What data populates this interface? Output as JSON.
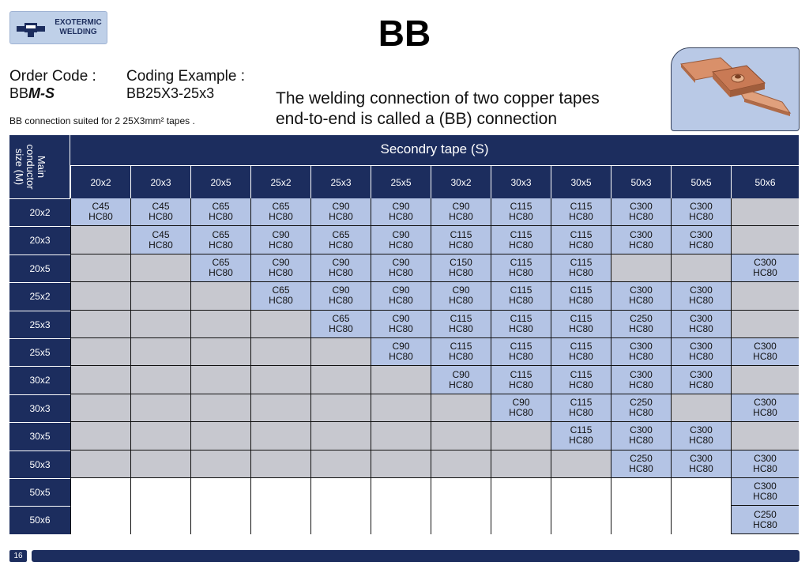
{
  "logo": {
    "text": "EXOTERMIC WELDING"
  },
  "title": "BB",
  "order": {
    "label": "Order Code :",
    "code_prefix": "BB",
    "code_suffix": "M-S"
  },
  "coding": {
    "label": "Coding Example :",
    "example": "BB25X3-25x3"
  },
  "suited_text": "BB connection suited for 2 25X3mm² tapes .",
  "description": {
    "line1": "The welding connection of two copper tapes",
    "line2": "end-to-end is called a (BB) connection"
  },
  "table": {
    "main_header": "Main conductor size (M)",
    "secondary_header": "Secondry tape (S)",
    "columns": [
      "20x2",
      "20x3",
      "20x5",
      "25x2",
      "25x3",
      "25x5",
      "30x2",
      "30x3",
      "30x5",
      "50x3",
      "50x5",
      "50x6"
    ],
    "rows": [
      {
        "label": "20x2",
        "cells": [
          [
            "C45",
            "HC80"
          ],
          [
            "C45",
            "HC80"
          ],
          [
            "C65",
            "HC80"
          ],
          [
            "C65",
            "HC80"
          ],
          [
            "C90",
            "HC80"
          ],
          [
            "C90",
            "HC80"
          ],
          [
            "C90",
            "HC80"
          ],
          [
            "C115",
            "HC80"
          ],
          [
            "C115",
            "HC80"
          ],
          [
            "C300",
            "HC80"
          ],
          [
            "C300",
            "HC80"
          ],
          "gray"
        ]
      },
      {
        "label": "20x3",
        "cells": [
          "gray",
          [
            "C45",
            "HC80"
          ],
          [
            "C65",
            "HC80"
          ],
          [
            "C90",
            "HC80"
          ],
          [
            "C65",
            "HC80"
          ],
          [
            "C90",
            "HC80"
          ],
          [
            "C115",
            "HC80"
          ],
          [
            "C115",
            "HC80"
          ],
          [
            "C115",
            "HC80"
          ],
          [
            "C300",
            "HC80"
          ],
          [
            "C300",
            "HC80"
          ],
          "gray"
        ]
      },
      {
        "label": "20x5",
        "cells": [
          "gray",
          "gray",
          [
            "C65",
            "HC80"
          ],
          [
            "C90",
            "HC80"
          ],
          [
            "C90",
            "HC80"
          ],
          [
            "C90",
            "HC80"
          ],
          [
            "C150",
            "HC80"
          ],
          [
            "C115",
            "HC80"
          ],
          [
            "C115",
            "HC80"
          ],
          "gray",
          "gray",
          [
            "C300",
            "HC80"
          ]
        ]
      },
      {
        "label": "25x2",
        "cells": [
          "gray",
          "gray",
          "gray",
          [
            "C65",
            "HC80"
          ],
          [
            "C90",
            "HC80"
          ],
          [
            "C90",
            "HC80"
          ],
          [
            "C90",
            "HC80"
          ],
          [
            "C115",
            "HC80"
          ],
          [
            "C115",
            "HC80"
          ],
          [
            "C300",
            "HC80"
          ],
          [
            "C300",
            "HC80"
          ],
          "gray"
        ]
      },
      {
        "label": "25x3",
        "cells": [
          "gray",
          "gray",
          "gray",
          "gray",
          [
            "C65",
            "HC80"
          ],
          [
            "C90",
            "HC80"
          ],
          [
            "C115",
            "HC80"
          ],
          [
            "C115",
            "HC80"
          ],
          [
            "C115",
            "HC80"
          ],
          [
            "C250",
            "HC80"
          ],
          [
            "C300",
            "HC80"
          ],
          "gray"
        ]
      },
      {
        "label": "25x5",
        "cells": [
          "gray",
          "gray",
          "gray",
          "gray",
          "gray",
          [
            "C90",
            "HC80"
          ],
          [
            "C115",
            "HC80"
          ],
          [
            "C115",
            "HC80"
          ],
          [
            "C115",
            "HC80"
          ],
          [
            "C300",
            "HC80"
          ],
          [
            "C300",
            "HC80"
          ],
          [
            "C300",
            "HC80"
          ]
        ]
      },
      {
        "label": "30x2",
        "cells": [
          "gray",
          "gray",
          "gray",
          "gray",
          "gray",
          "gray",
          [
            "C90",
            "HC80"
          ],
          [
            "C115",
            "HC80"
          ],
          [
            "C115",
            "HC80"
          ],
          [
            "C300",
            "HC80"
          ],
          [
            "C300",
            "HC80"
          ],
          "gray"
        ]
      },
      {
        "label": "30x3",
        "cells": [
          "gray",
          "gray",
          "gray",
          "gray",
          "gray",
          "gray",
          "gray",
          [
            "C90",
            "HC80"
          ],
          [
            "C115",
            "HC80"
          ],
          [
            "C250",
            "HC80"
          ],
          "gray",
          [
            "C300",
            "HC80"
          ]
        ]
      },
      {
        "label": "30x5",
        "cells": [
          "gray",
          "gray",
          "gray",
          "gray",
          "gray",
          "gray",
          "gray",
          "gray",
          [
            "C115",
            "HC80"
          ],
          [
            "C300",
            "HC80"
          ],
          [
            "C300",
            "HC80"
          ],
          "gray"
        ]
      },
      {
        "label": "50x3",
        "cells": [
          "gray",
          "gray",
          "gray",
          "gray",
          "gray",
          "gray",
          "gray",
          "gray",
          "gray",
          [
            "C250",
            "HC80"
          ],
          [
            "C300",
            "HC80"
          ],
          [
            "C300",
            "HC80"
          ]
        ]
      },
      {
        "label": "50x5",
        "cells": [
          "blank",
          "blank",
          "blank",
          "blank",
          "blank",
          "blank",
          "blank",
          "blank",
          "blank",
          "blank",
          "blank",
          [
            "C300",
            "HC80"
          ]
        ]
      },
      {
        "label": "50x6",
        "cells": [
          "blank",
          "blank",
          "blank",
          "blank",
          "blank",
          "blank",
          "blank",
          "blank",
          "blank",
          "blank",
          "blank",
          [
            "C250",
            "HC80"
          ]
        ]
      }
    ]
  },
  "page_number": "16",
  "colors": {
    "navy": "#1c2d5e",
    "filled": "#b4c4e5",
    "gray": "#c7c8cf"
  }
}
